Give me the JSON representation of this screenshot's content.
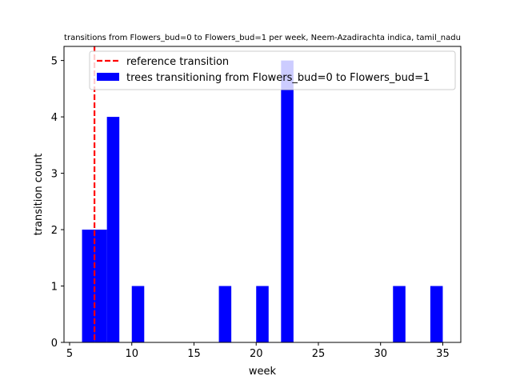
{
  "chart_data": {
    "type": "bar",
    "title": "transitions from Flowers_bud=0 to Flowers_bud=1 per week, Neem-Azadirachta indica, tamil_nadu",
    "xlabel": "week",
    "ylabel": "transition count",
    "xlim": [
      4.55,
      36.45
    ],
    "ylim": [
      0,
      5.25
    ],
    "xticks": [
      5,
      10,
      15,
      20,
      25,
      30,
      35
    ],
    "yticks": [
      0,
      1,
      2,
      3,
      4,
      5
    ],
    "grid": false,
    "legend_position": "top-right",
    "bar_color": "#0000ff",
    "reference_color": "#ff0000",
    "series": [
      {
        "name": "trees transitioning from Flowers_bud=0 to Flowers_bud=1",
        "bins": [
          {
            "x0": 6.0,
            "x1": 7.0,
            "value": 2
          },
          {
            "x0": 7.0,
            "x1": 8.0,
            "value": 2
          },
          {
            "x0": 8.0,
            "x1": 9.0,
            "value": 4
          },
          {
            "x0": 10.0,
            "x1": 11.0,
            "value": 1
          },
          {
            "x0": 17.0,
            "x1": 18.0,
            "value": 1
          },
          {
            "x0": 20.0,
            "x1": 21.0,
            "value": 1
          },
          {
            "x0": 22.0,
            "x1": 23.0,
            "value": 5
          },
          {
            "x0": 31.0,
            "x1": 32.0,
            "value": 1
          },
          {
            "x0": 34.0,
            "x1": 35.0,
            "value": 1
          }
        ]
      }
    ],
    "reference_line": {
      "name": "reference transition",
      "x": 7
    }
  }
}
